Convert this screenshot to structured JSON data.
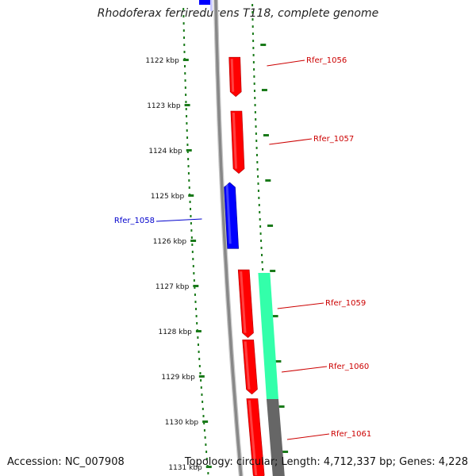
{
  "title": "Rhodoferax ferrireducens T118, complete genome",
  "footer": {
    "accession": "Accession: NC_007908",
    "summary": "Topology: circular; Length: 4,712,337 bp; Genes: 4,228"
  },
  "colors": {
    "forward_gene": "#ff0000",
    "reverse_gene": "#0000ff",
    "tick": "#1a7a1a",
    "backbone": "#888888",
    "feature_green": "#33ffaa",
    "feature_gray": "#666666",
    "label_red": "#cc0000",
    "label_blue": "#0000cc"
  },
  "axis": {
    "ticks": [
      {
        "kbp": 1122,
        "label": "1122 kbp"
      },
      {
        "kbp": 1123,
        "label": "1123 kbp"
      },
      {
        "kbp": 1124,
        "label": "1124 kbp"
      },
      {
        "kbp": 1125,
        "label": "1125 kbp"
      },
      {
        "kbp": 1126,
        "label": "1126 kbp"
      },
      {
        "kbp": 1127,
        "label": "1127 kbp"
      },
      {
        "kbp": 1128,
        "label": "1128 kbp"
      },
      {
        "kbp": 1129,
        "label": "1129 kbp"
      },
      {
        "kbp": 1130,
        "label": "1130 kbp"
      },
      {
        "kbp": 1131,
        "label": "1131 kbp"
      }
    ]
  },
  "genes": [
    {
      "name": "Rfer_1056",
      "strand": "forward",
      "start_kbp": 1121.95,
      "end_kbp": 1122.82
    },
    {
      "name": "Rfer_1057",
      "strand": "forward",
      "start_kbp": 1123.14,
      "end_kbp": 1124.52
    },
    {
      "name": "Rfer_1058",
      "strand": "reverse",
      "start_kbp": 1124.72,
      "end_kbp": 1126.18
    },
    {
      "name": "Rfer_1059",
      "strand": "forward",
      "start_kbp": 1126.65,
      "end_kbp": 1128.15
    },
    {
      "name": "Rfer_1060",
      "strand": "forward",
      "start_kbp": 1128.2,
      "end_kbp": 1129.4
    },
    {
      "name": "Rfer_1061",
      "strand": "forward",
      "start_kbp": 1129.5,
      "end_kbp": 1131.3
    }
  ]
}
